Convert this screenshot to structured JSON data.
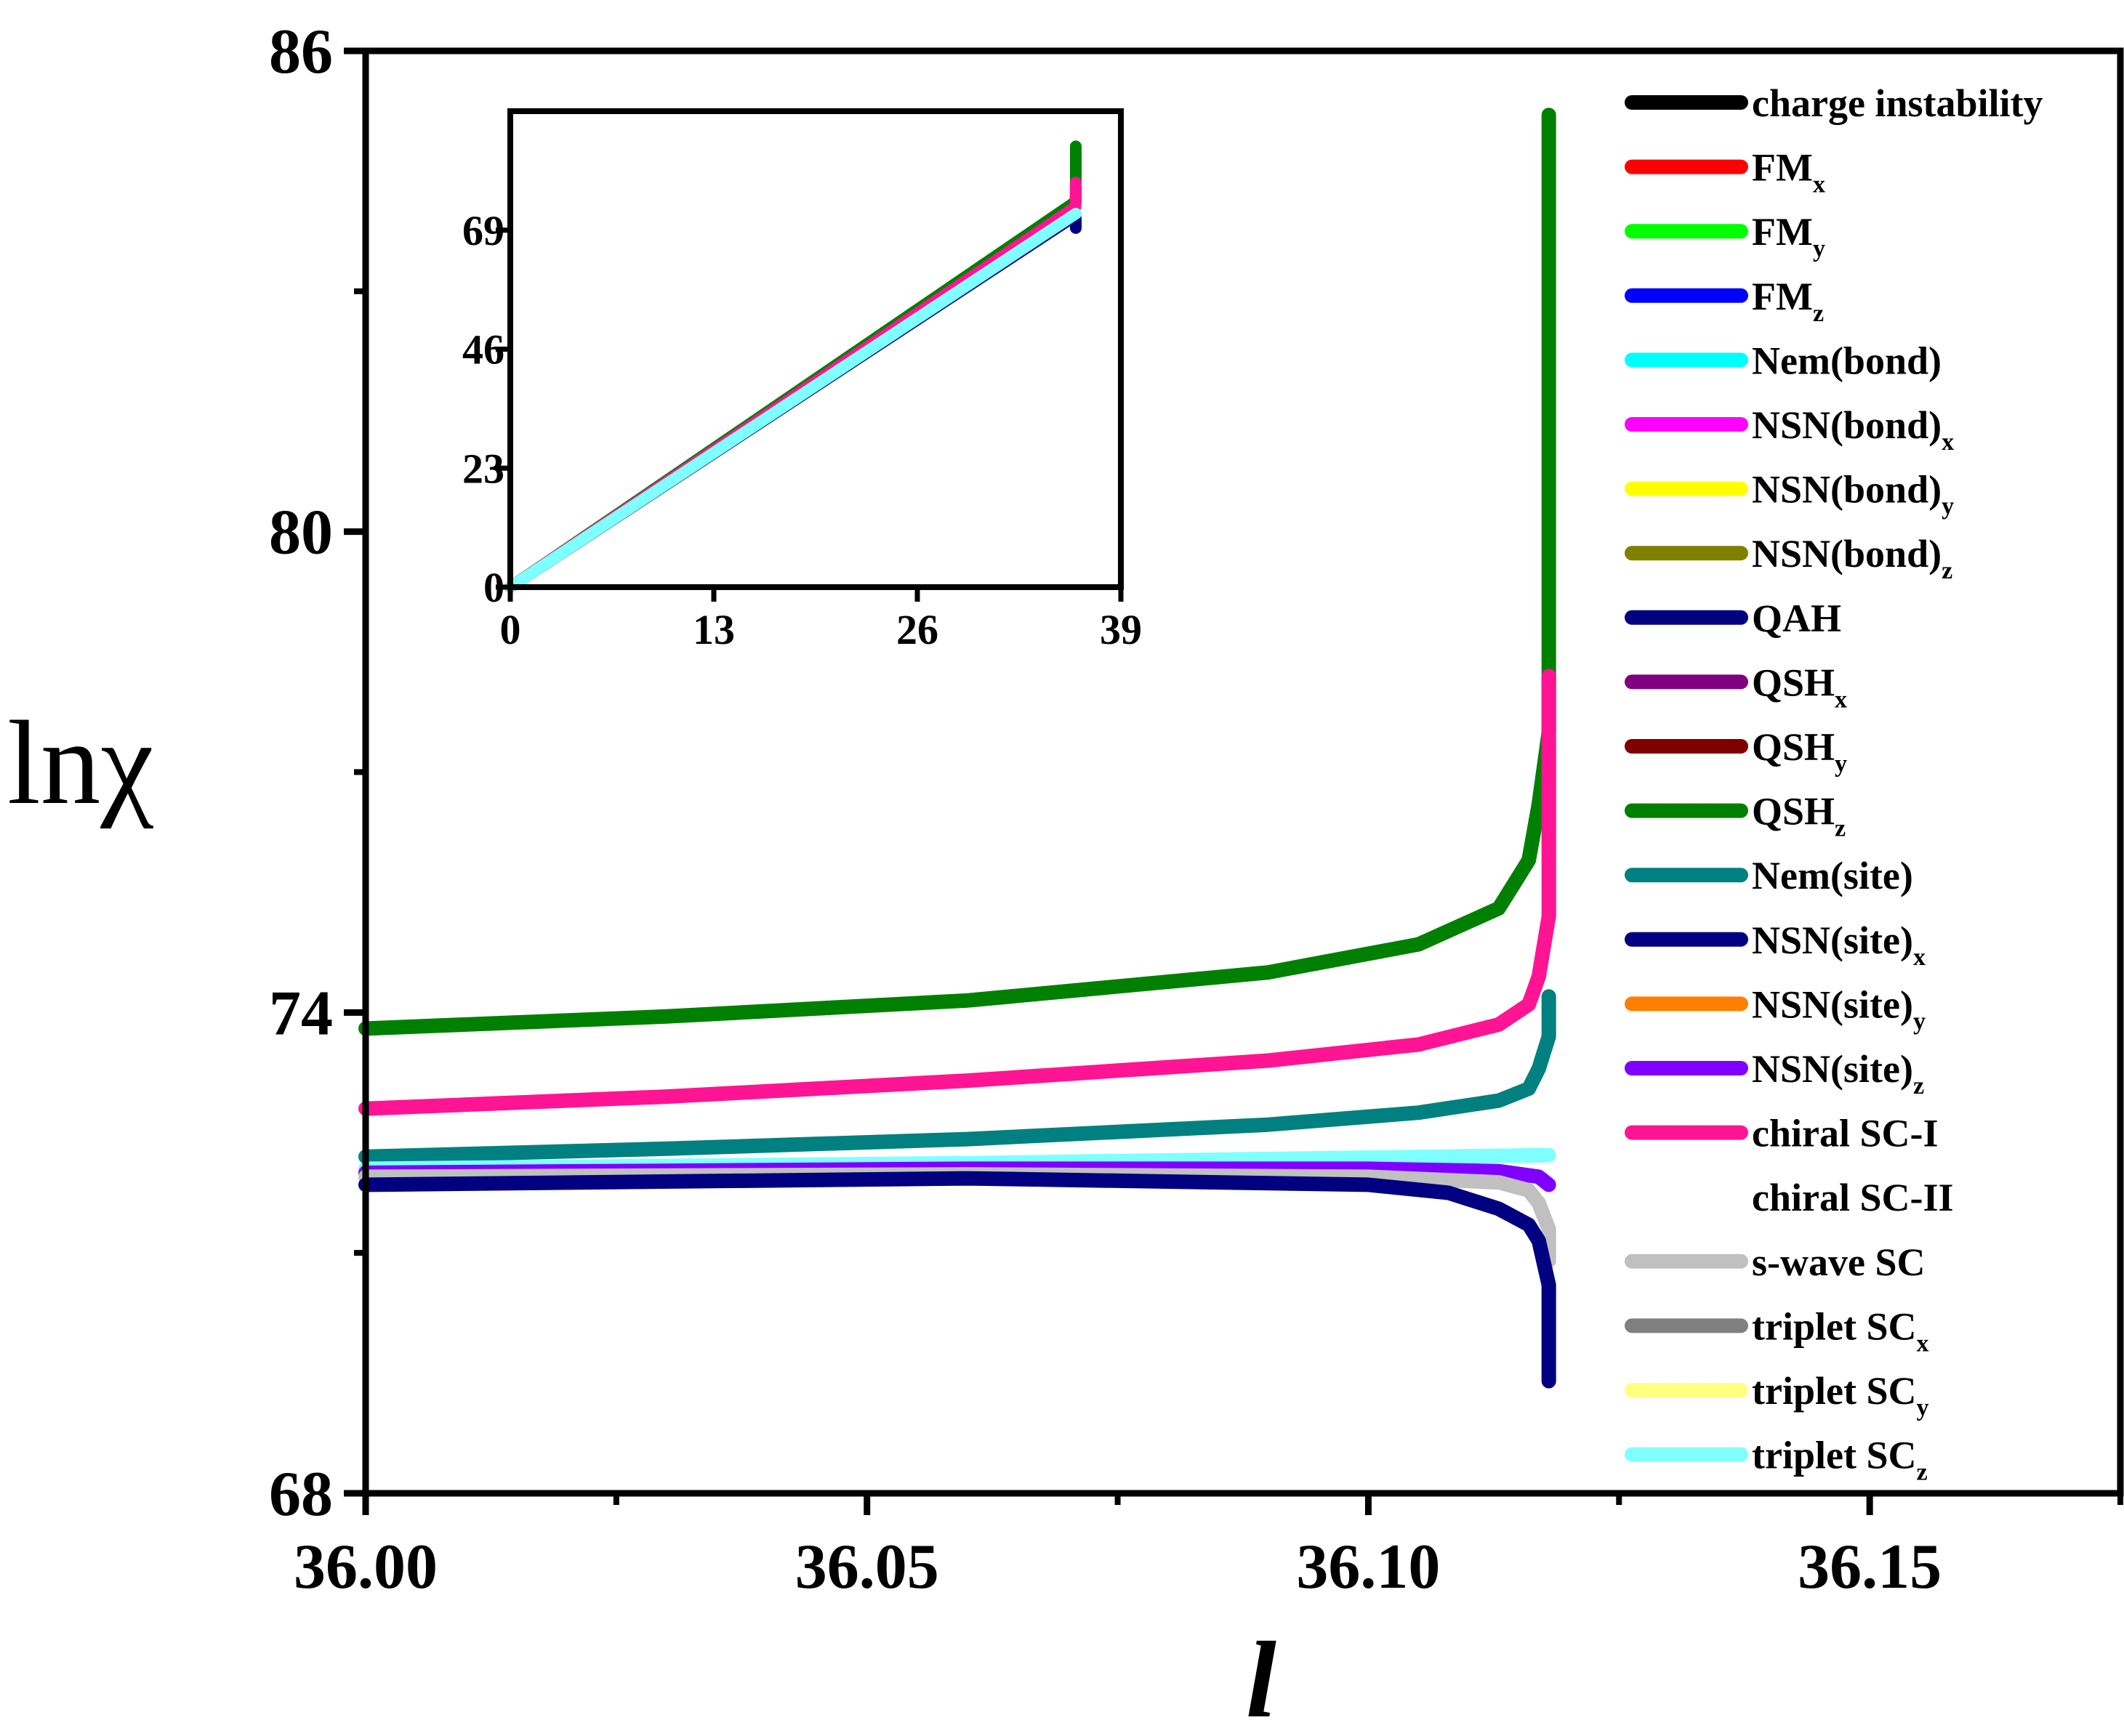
{
  "chart_data": [
    {
      "type": "line",
      "xlabel": "l",
      "ylabel": "lnχ",
      "xlim": [
        36.0,
        36.175
      ],
      "ylim": [
        68,
        86
      ],
      "xticks": [
        {
          "value": 36.0,
          "label": "36.00"
        },
        {
          "value": 36.05,
          "label": "36.05"
        },
        {
          "value": 36.1,
          "label": "36.10"
        },
        {
          "value": 36.15,
          "label": "36.15"
        }
      ],
      "xminor": [
        36.025,
        36.075,
        36.125,
        36.175
      ],
      "yticks": [
        {
          "value": 68,
          "label": "68"
        },
        {
          "value": 74,
          "label": "74"
        },
        {
          "value": 80,
          "label": "80"
        },
        {
          "value": 86,
          "label": "86"
        }
      ],
      "yminor": [
        71,
        77,
        83
      ],
      "series": [
        {
          "name": "QSHz",
          "label": "QSH",
          "sub": "z",
          "color": "#008000",
          "x": [
            36.0,
            36.03,
            36.06,
            36.09,
            36.105,
            36.113,
            36.116,
            36.117,
            36.118,
            36.118,
            36.118
          ],
          "y": [
            73.8,
            73.95,
            74.15,
            74.5,
            74.85,
            75.3,
            75.9,
            76.6,
            77.5,
            80.5,
            85.2
          ]
        },
        {
          "name": "chiral SC-I",
          "label": "chiral SC-I",
          "sub": "",
          "color": "#ff1493",
          "x": [
            36.0,
            36.03,
            36.06,
            36.09,
            36.105,
            36.113,
            36.116,
            36.117,
            36.118,
            36.118
          ],
          "y": [
            72.8,
            72.95,
            73.15,
            73.4,
            73.6,
            73.85,
            74.1,
            74.45,
            75.2,
            78.2
          ]
        },
        {
          "name": "Nem(site)",
          "label": "Nem(site)",
          "sub": "",
          "color": "#008080",
          "x": [
            36.0,
            36.03,
            36.06,
            36.09,
            36.105,
            36.113,
            36.116,
            36.117,
            36.118,
            36.118
          ],
          "y": [
            72.2,
            72.3,
            72.42,
            72.6,
            72.75,
            72.9,
            73.05,
            73.3,
            73.7,
            74.2
          ]
        },
        {
          "name": "triplet SCz",
          "label": "triplet SC",
          "sub": "z",
          "color": "#80ffff",
          "x": [
            36.0,
            36.06,
            36.118
          ],
          "y": [
            72.05,
            72.12,
            72.22
          ]
        },
        {
          "name": "NSN(site)z",
          "label": "NSN(site)",
          "sub": "z",
          "color": "#8000ff",
          "x": [
            36.0,
            36.06,
            36.1,
            36.113,
            36.117,
            36.118
          ],
          "y": [
            72.0,
            72.05,
            72.05,
            72.02,
            71.95,
            71.85
          ]
        },
        {
          "name": "s-wave SC",
          "label": "s-wave SC",
          "sub": "",
          "color": "#c0c0c0",
          "x": [
            36.0,
            36.06,
            36.1,
            36.113,
            36.116,
            36.117,
            36.118,
            36.118
          ],
          "y": [
            71.95,
            71.98,
            71.95,
            71.88,
            71.78,
            71.62,
            71.3,
            70.9
          ]
        },
        {
          "name": "QAH",
          "label": "QAH",
          "sub": "",
          "color": "#000080",
          "x": [
            36.0,
            36.06,
            36.1,
            36.108,
            36.113,
            36.116,
            36.117,
            36.118,
            36.118
          ],
          "y": [
            71.85,
            71.93,
            71.85,
            71.75,
            71.55,
            71.35,
            71.15,
            70.6,
            69.4
          ]
        }
      ],
      "legend": [
        {
          "label": "charge instability",
          "sub": "",
          "color": "#000000"
        },
        {
          "label": "FM",
          "sub": "x",
          "color": "#ff0000"
        },
        {
          "label": "FM",
          "sub": "y",
          "color": "#00ff00"
        },
        {
          "label": "FM",
          "sub": "z",
          "color": "#0000ff"
        },
        {
          "label": "Nem(bond)",
          "sub": "",
          "color": "#00ffff"
        },
        {
          "label": "NSN(bond)",
          "sub": "x",
          "color": "#ff00ff"
        },
        {
          "label": "NSN(bond)",
          "sub": "y",
          "color": "#ffff00"
        },
        {
          "label": "NSN(bond)",
          "sub": "z",
          "color": "#808000"
        },
        {
          "label": "QAH",
          "sub": "",
          "color": "#000080"
        },
        {
          "label": "QSH",
          "sub": "x",
          "color": "#800080"
        },
        {
          "label": "QSH",
          "sub": "y",
          "color": "#800000"
        },
        {
          "label": "QSH",
          "sub": "z",
          "color": "#008000"
        },
        {
          "label": "Nem(site)",
          "sub": "",
          "color": "#008080"
        },
        {
          "label": "NSN(site)",
          "sub": "x",
          "color": "#000080"
        },
        {
          "label": "NSN(site)",
          "sub": "y",
          "color": "#ff8000"
        },
        {
          "label": "NSN(site)",
          "sub": "z",
          "color": "#8000ff"
        },
        {
          "label": "chiral SC-I",
          "sub": "",
          "color": "#ff1493"
        },
        {
          "label": "chiral SC-II",
          "sub": "",
          "color": "#ffffff"
        },
        {
          "label": "s-wave SC",
          "sub": "",
          "color": "#c0c0c0"
        },
        {
          "label": "triplet SC",
          "sub": "x",
          "color": "#808080"
        },
        {
          "label": "triplet SC",
          "sub": "y",
          "color": "#ffff80"
        },
        {
          "label": "triplet SC",
          "sub": "z",
          "color": "#80ffff"
        }
      ],
      "legend_position": "right"
    },
    {
      "type": "line",
      "role": "inset",
      "xlim": [
        0,
        39
      ],
      "ylim": [
        0,
        92
      ],
      "xticks": [
        {
          "value": 0,
          "label": "0"
        },
        {
          "value": 13,
          "label": "13"
        },
        {
          "value": 26,
          "label": "26"
        },
        {
          "value": 39,
          "label": "39"
        }
      ],
      "yticks": [
        {
          "value": 0,
          "label": "0"
        },
        {
          "value": 23,
          "label": "23"
        },
        {
          "value": 46,
          "label": "46"
        },
        {
          "value": 69,
          "label": "69"
        }
      ],
      "series": [
        {
          "name": "QSHz",
          "color": "#008000",
          "x": [
            0,
            36.1,
            36.12,
            36.12
          ],
          "y": [
            0,
            74.5,
            78,
            85.2
          ]
        },
        {
          "name": "chiral SC-I",
          "color": "#ff1493",
          "x": [
            0,
            36.1,
            36.12,
            36.12
          ],
          "y": [
            0,
            73.5,
            74.5,
            78.2
          ]
        },
        {
          "name": "QAH",
          "color": "#000080",
          "x": [
            0,
            36.1,
            36.12,
            36.12
          ],
          "y": [
            0,
            71.8,
            71,
            69.4
          ]
        },
        {
          "name": "triplet SCz",
          "color": "#80ffff",
          "x": [
            0,
            36.12
          ],
          "y": [
            0,
            72.2
          ]
        }
      ]
    }
  ]
}
